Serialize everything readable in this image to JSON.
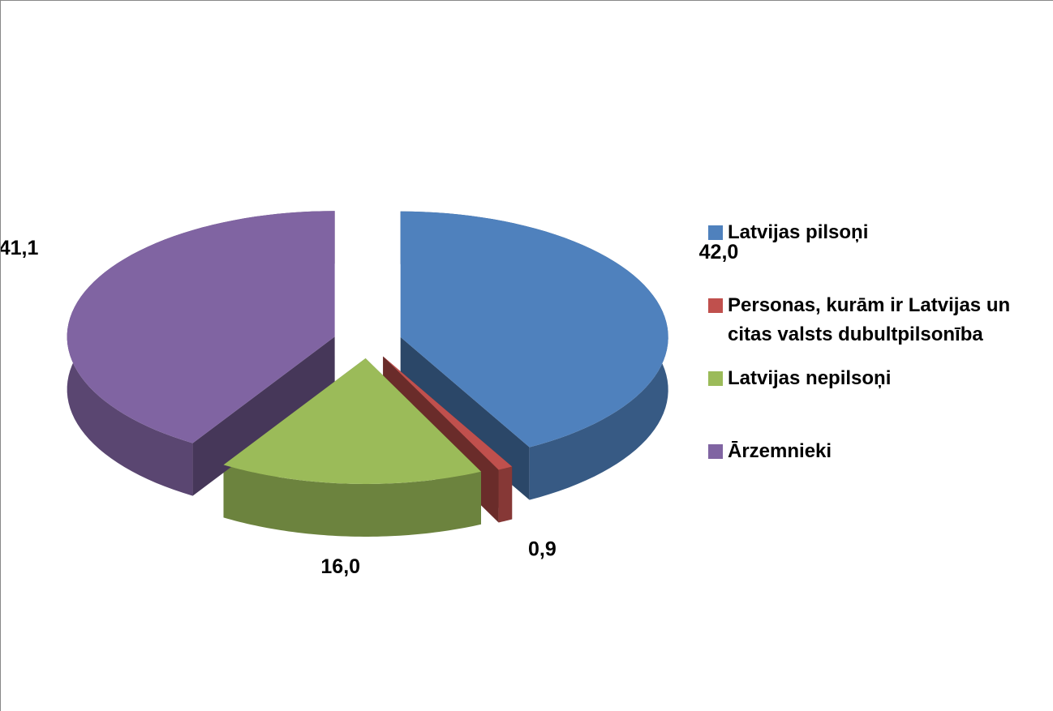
{
  "chart_data": {
    "type": "pie",
    "categories": [
      "Latvijas pilsoņi",
      "Personas, kurām ir Latvijas un citas valsts dubultpilsonība",
      "Latvijas nepilsoņi",
      "Ārzemnieki"
    ],
    "values": [
      42.0,
      0.9,
      16.0,
      41.1
    ],
    "value_labels": [
      "42,0",
      "0,9",
      "16,0",
      "41,1"
    ],
    "colors": [
      "#4f81bd",
      "#c0504d",
      "#9bbb59",
      "#8064a2"
    ],
    "legend": "right"
  }
}
